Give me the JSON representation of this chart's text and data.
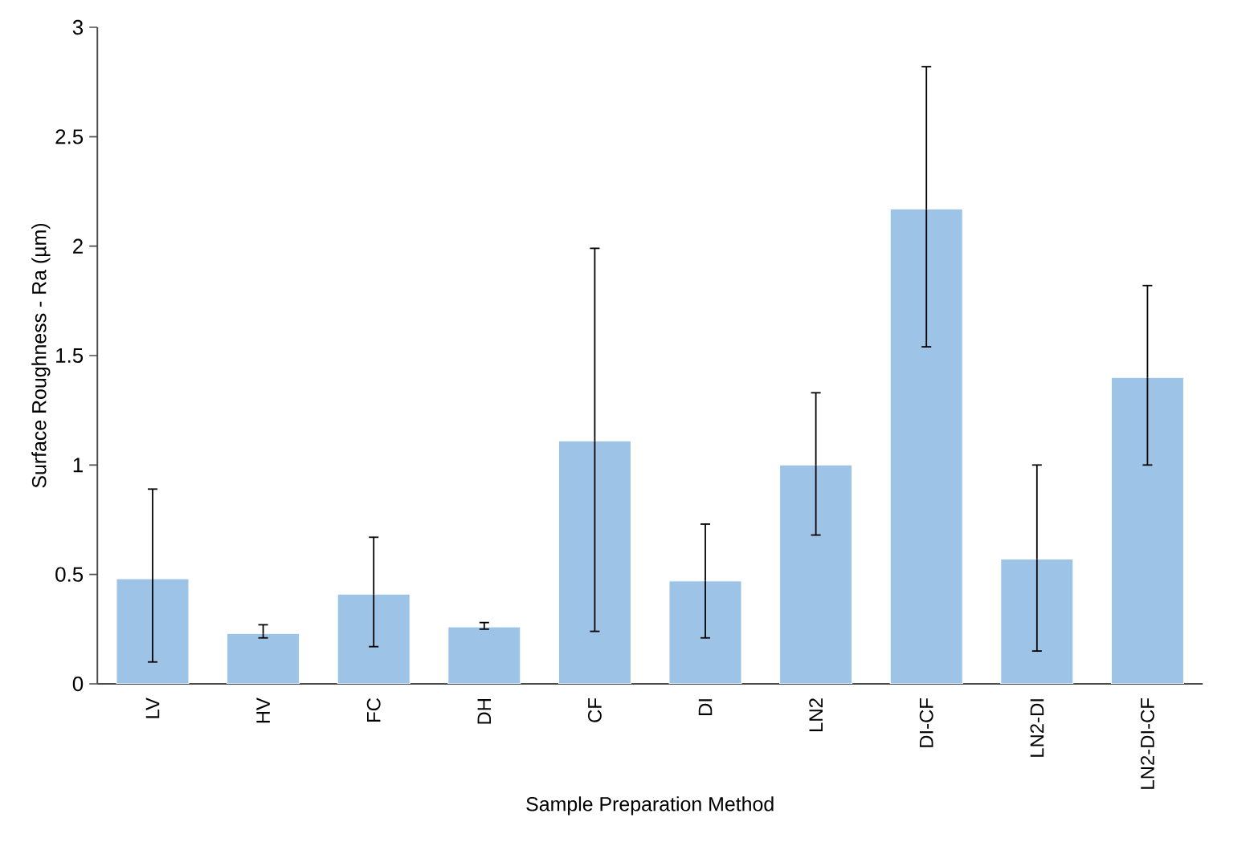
{
  "chart_data": {
    "type": "bar",
    "xlabel": "Sample Preparation Method",
    "ylabel": "Surface Roughness - Ra (µm)",
    "categories": [
      "LV",
      "HV",
      "FC",
      "DH",
      "CF",
      "DI",
      "LN2",
      "DI-CF",
      "LN2-DI",
      "LN2-DI-CF"
    ],
    "values": [
      0.48,
      0.23,
      0.41,
      0.26,
      1.11,
      0.47,
      1.0,
      2.17,
      0.57,
      1.4
    ],
    "errors": [
      [
        0.1,
        0.89
      ],
      [
        0.21,
        0.27
      ],
      [
        0.17,
        0.67
      ],
      [
        0.25,
        0.28
      ],
      [
        0.24,
        1.99
      ],
      [
        0.21,
        0.73
      ],
      [
        0.68,
        1.33
      ],
      [
        1.54,
        2.82
      ],
      [
        0.15,
        1.0
      ],
      [
        1.0,
        1.82
      ]
    ],
    "color": "#9dc3e6",
    "ylim": [
      0,
      3
    ],
    "yticks": [
      0,
      0.5,
      1,
      1.5,
      2,
      2.5,
      3
    ],
    "grid": false
  }
}
